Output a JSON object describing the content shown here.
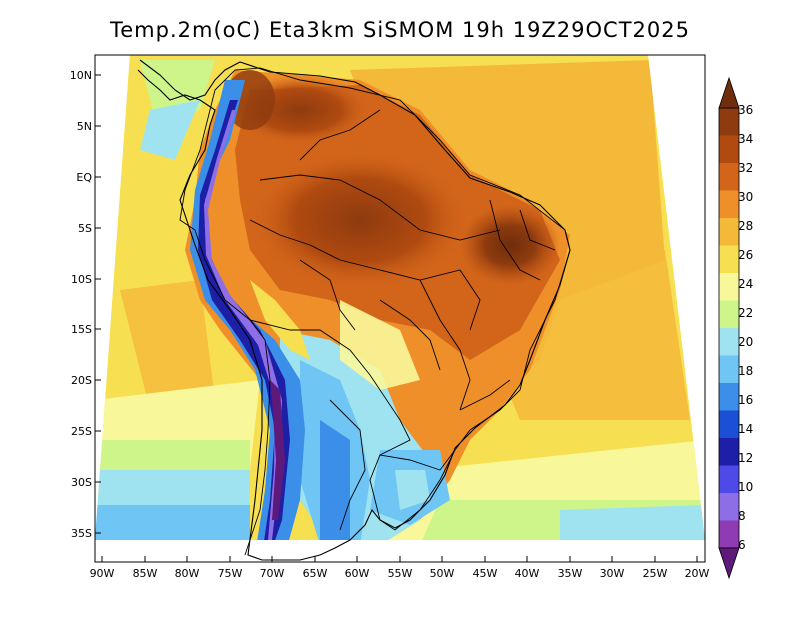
{
  "title": "Temp.2m(oC) Eta3km SiSMOM 19h 19Z29OCT2025",
  "axes": {
    "lat_labels": [
      "10N",
      "5N",
      "EQ",
      "5S",
      "10S",
      "15S",
      "20S",
      "25S",
      "30S",
      "35S"
    ],
    "lon_labels": [
      "90W",
      "85W",
      "80W",
      "75W",
      "70W",
      "65W",
      "60W",
      "55W",
      "50W",
      "45W",
      "40W",
      "35W",
      "30W",
      "25W",
      "20W"
    ]
  },
  "colorbar": {
    "labels": [
      "36",
      "34",
      "32",
      "30",
      "28",
      "26",
      "24",
      "22",
      "20",
      "18",
      "16",
      "14",
      "12",
      "10",
      "8",
      "6"
    ],
    "colors_top_to_bottom": [
      "#6e2d0b",
      "#8e3b0f",
      "#b04a10",
      "#d2651a",
      "#ee8f2a",
      "#f5b93a",
      "#f7df52",
      "#f8f79a",
      "#cdf58a",
      "#9fe3f0",
      "#6fc6f5",
      "#3b8fe8",
      "#1a4fd6",
      "#1d1fa6",
      "#4d4ae8",
      "#8e6ee6",
      "#8e3bb4",
      "#5e1a7a"
    ]
  },
  "icons": {
    "colorbar_top": "triangle-up-icon",
    "colorbar_bottom": "triangle-down-icon"
  }
}
